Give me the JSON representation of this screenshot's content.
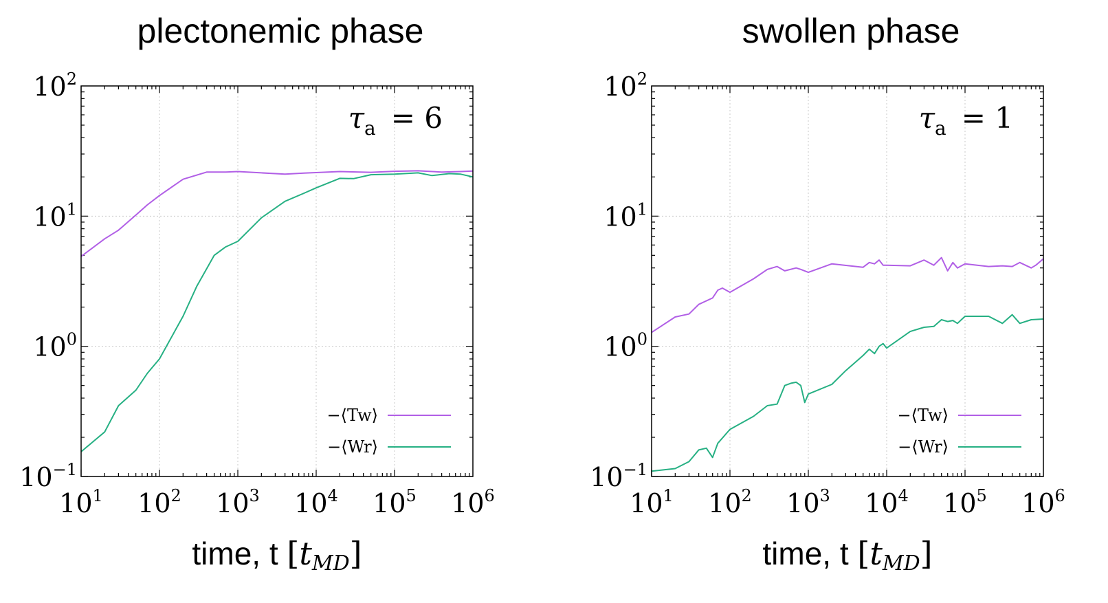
{
  "chart_data": [
    {
      "type": "line",
      "title": "plectonemic phase",
      "annotation": {
        "symbol": "τ",
        "subscript": "a",
        "text": "= 6"
      },
      "xlabel": {
        "prefix": "time, t ",
        "bracket_open": "[",
        "var": "t",
        "sub": "MD",
        "bracket_close": "]"
      },
      "xscale": "log",
      "yscale": "log",
      "xlim": [
        10,
        1000000
      ],
      "ylim": [
        0.1,
        100
      ],
      "xticks": [
        {
          "base": "10",
          "exp": "1",
          "value": 10
        },
        {
          "base": "10",
          "exp": "2",
          "value": 100
        },
        {
          "base": "10",
          "exp": "3",
          "value": 1000
        },
        {
          "base": "10",
          "exp": "4",
          "value": 10000
        },
        {
          "base": "10",
          "exp": "5",
          "value": 100000
        },
        {
          "base": "10",
          "exp": "6",
          "value": 1000000
        }
      ],
      "yticks": [
        {
          "base": "10",
          "exp": "−1",
          "value": 0.1
        },
        {
          "base": "10",
          "exp": "0",
          "value": 1
        },
        {
          "base": "10",
          "exp": "1",
          "value": 10
        },
        {
          "base": "10",
          "exp": "2",
          "value": 100
        }
      ],
      "grid": true,
      "legend_position": "bottom-right",
      "series": [
        {
          "name": "−⟨Tw⟩",
          "color": "#b15fe6",
          "x": [
            10,
            20,
            30,
            50,
            70,
            100,
            200,
            400,
            700,
            1000,
            2000,
            4000,
            7000,
            10000,
            20000,
            50000,
            100000,
            200000,
            400000,
            700000,
            1000000
          ],
          "y": [
            4.9,
            6.7,
            7.8,
            10.2,
            12.2,
            14.4,
            19.2,
            21.8,
            21.8,
            22.0,
            21.5,
            21.0,
            21.4,
            21.6,
            22.0,
            21.7,
            22.1,
            22.3,
            21.8,
            22.0,
            22.2
          ]
        },
        {
          "name": "−⟨Wr⟩",
          "color": "#26b083",
          "x": [
            10,
            20,
            30,
            50,
            70,
            100,
            200,
            300,
            500,
            700,
            1000,
            2000,
            4000,
            7000,
            10000,
            20000,
            30000,
            50000,
            100000,
            200000,
            300000,
            500000,
            700000,
            1000000
          ],
          "y": [
            0.155,
            0.22,
            0.35,
            0.46,
            0.62,
            0.8,
            1.7,
            2.9,
            5.0,
            5.8,
            6.4,
            9.7,
            13.0,
            15.0,
            16.5,
            19.5,
            19.4,
            20.8,
            21.0,
            21.5,
            20.5,
            21.2,
            21.0,
            20.0
          ]
        }
      ]
    },
    {
      "type": "line",
      "title": "swollen phase",
      "annotation": {
        "symbol": "τ",
        "subscript": "a",
        "text": "= 1"
      },
      "xlabel": {
        "prefix": "time, t ",
        "bracket_open": "[",
        "var": "t",
        "sub": "MD",
        "bracket_close": "]"
      },
      "xscale": "log",
      "yscale": "log",
      "xlim": [
        10,
        1000000
      ],
      "ylim": [
        0.1,
        100
      ],
      "xticks": [
        {
          "base": "10",
          "exp": "1",
          "value": 10
        },
        {
          "base": "10",
          "exp": "2",
          "value": 100
        },
        {
          "base": "10",
          "exp": "3",
          "value": 1000
        },
        {
          "base": "10",
          "exp": "4",
          "value": 10000
        },
        {
          "base": "10",
          "exp": "5",
          "value": 100000
        },
        {
          "base": "10",
          "exp": "6",
          "value": 1000000
        }
      ],
      "yticks": [
        {
          "base": "10",
          "exp": "−1",
          "value": 0.1
        },
        {
          "base": "10",
          "exp": "0",
          "value": 1
        },
        {
          "base": "10",
          "exp": "1",
          "value": 10
        },
        {
          "base": "10",
          "exp": "2",
          "value": 100
        }
      ],
      "grid": true,
      "legend_position": "bottom-right",
      "series": [
        {
          "name": "−⟨Tw⟩",
          "color": "#b15fe6",
          "x": [
            10,
            20,
            30,
            40,
            60,
            70,
            80,
            100,
            200,
            300,
            400,
            500,
            700,
            800,
            1000,
            2000,
            5000,
            6000,
            7000,
            8000,
            9000,
            10000,
            20000,
            30000,
            40000,
            50000,
            60000,
            70000,
            80000,
            100000,
            200000,
            300000,
            400000,
            500000,
            700000,
            800000,
            1000000
          ],
          "y": [
            1.28,
            1.68,
            1.77,
            2.1,
            2.35,
            2.7,
            2.8,
            2.6,
            3.3,
            3.9,
            4.1,
            3.8,
            4.0,
            3.9,
            3.7,
            4.3,
            4.05,
            4.4,
            4.3,
            4.6,
            4.2,
            4.2,
            4.15,
            4.6,
            4.2,
            4.8,
            3.8,
            4.4,
            4.0,
            4.3,
            4.1,
            4.15,
            4.1,
            4.4,
            4.0,
            4.2,
            4.7
          ]
        },
        {
          "name": "−⟨Wr⟩",
          "color": "#26b083",
          "x": [
            10,
            20,
            30,
            40,
            50,
            60,
            70,
            100,
            200,
            300,
            400,
            500,
            600,
            700,
            800,
            900,
            1000,
            2000,
            3000,
            5000,
            6000,
            7000,
            8000,
            9000,
            10000,
            20000,
            30000,
            40000,
            50000,
            60000,
            70000,
            80000,
            100000,
            200000,
            300000,
            400000,
            500000,
            700000,
            1000000
          ],
          "y": [
            0.11,
            0.115,
            0.13,
            0.16,
            0.165,
            0.14,
            0.18,
            0.23,
            0.29,
            0.35,
            0.36,
            0.5,
            0.52,
            0.53,
            0.5,
            0.37,
            0.43,
            0.51,
            0.65,
            0.85,
            0.95,
            0.88,
            1.0,
            1.05,
            0.97,
            1.3,
            1.4,
            1.42,
            1.6,
            1.55,
            1.58,
            1.5,
            1.7,
            1.7,
            1.5,
            1.75,
            1.5,
            1.6,
            1.62
          ]
        }
      ]
    }
  ]
}
